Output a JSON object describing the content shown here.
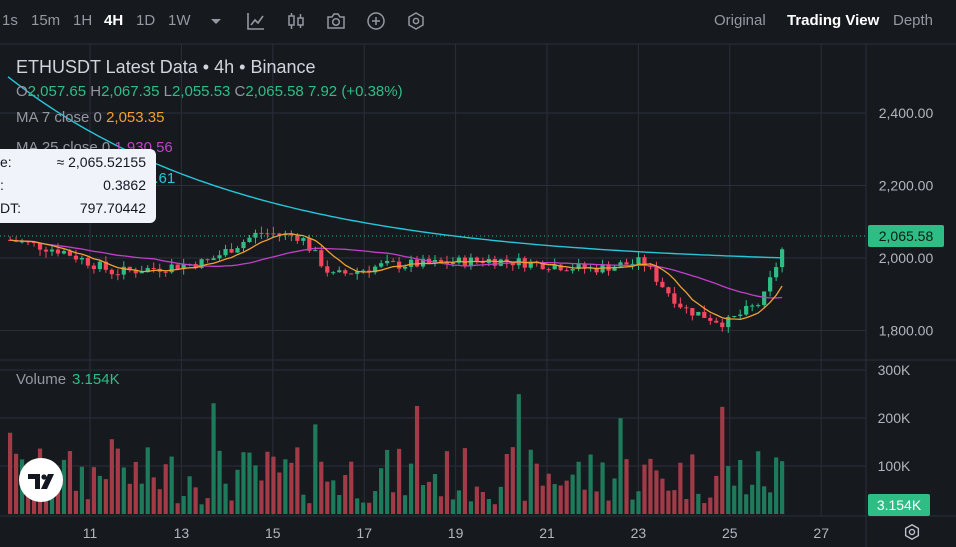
{
  "toolbar": {
    "intervals": [
      "1s",
      "15m",
      "1H",
      "4H",
      "1D",
      "1W"
    ],
    "active_interval": "4H",
    "icons": [
      "chevron-down-icon",
      "indicators-icon",
      "candle-type-icon",
      "camera-icon",
      "add-icon",
      "settings-hex-icon"
    ],
    "views": [
      "Original",
      "Trading View",
      "Depth"
    ],
    "active_view": "Trading View"
  },
  "legend": {
    "symbol": "ETHUSDT Latest Data",
    "interval": "4h",
    "exchange": "Binance",
    "sep": "•",
    "o_label": "O",
    "o": "2,057.65",
    "h_label": "H",
    "h": "2,067.35",
    "l_label": "L",
    "l": "2,055.53",
    "c_label": "C",
    "c": "2,065.58",
    "change": "7.92 (+0.38%)",
    "ma7_label": "MA 7 close 0",
    "ma7": "2,053.35",
    "ma25_label": "MA 25 close 0",
    "ma25": "1,930.56",
    "ma99_value": "2.61"
  },
  "tooltip": {
    "rows": [
      {
        "k": "e:",
        "v": "≈ 2,065.52155"
      },
      {
        "k": ":",
        "v": "0.3862"
      },
      {
        "k": "DT:",
        "v": "797.70442"
      }
    ]
  },
  "volume": {
    "label": "Volume",
    "value": "3.154K"
  },
  "price_axis": [
    "2,400.00",
    "2,200.00",
    "2,000.00",
    "1,800.00"
  ],
  "volume_axis": [
    "300K",
    "200K",
    "100K"
  ],
  "last_price": "2,065.58",
  "last_volume": "3.154K",
  "date_axis": [
    "11",
    "13",
    "15",
    "17",
    "19",
    "21",
    "23",
    "25",
    "27"
  ],
  "colors": {
    "up": "#2ebd85",
    "down": "#f6465d",
    "up_vol": "#1f7a5c",
    "down_vol": "#a23a47",
    "ma7": "#f0a030",
    "ma25": "#c040c8",
    "ma99": "#26c6da",
    "grid": "#2a2e39"
  },
  "chart_data": {
    "type": "candlestick",
    "y_range": [
      1720,
      2520
    ],
    "volume_range": [
      0,
      300
    ],
    "volume_unit": "K",
    "candles": []
  }
}
